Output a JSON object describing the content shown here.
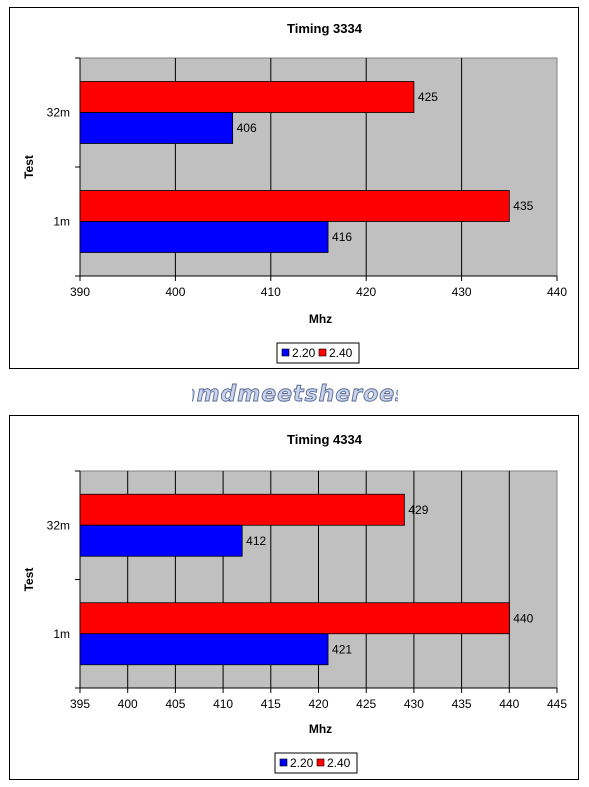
{
  "watermark": "amdmeetsheroes",
  "chart_data": [
    {
      "type": "bar",
      "orientation": "horizontal",
      "title": "Timing 3334",
      "xlabel": "Mhz",
      "ylabel": "Test",
      "categories": [
        "1m",
        "32m"
      ],
      "xlim": [
        390,
        440
      ],
      "xticks": [
        390,
        400,
        410,
        420,
        430,
        440
      ],
      "series": [
        {
          "name": "2.20",
          "color": "#0000ff",
          "values": [
            416,
            406
          ]
        },
        {
          "name": "2.40",
          "color": "#ff0000",
          "values": [
            435,
            425
          ]
        }
      ],
      "plot_background": "#c0c0c0",
      "grid": true,
      "legend_position": "bottom"
    },
    {
      "type": "bar",
      "orientation": "horizontal",
      "title": "Timing 4334",
      "xlabel": "Mhz",
      "ylabel": "Test",
      "categories": [
        "1m",
        "32m"
      ],
      "xlim": [
        395,
        445
      ],
      "xticks": [
        395,
        400,
        405,
        410,
        415,
        420,
        425,
        430,
        435,
        440,
        445
      ],
      "series": [
        {
          "name": "2.20",
          "color": "#0000ff",
          "values": [
            421,
            412
          ]
        },
        {
          "name": "2.40",
          "color": "#ff0000",
          "values": [
            440,
            429
          ]
        }
      ],
      "plot_background": "#c0c0c0",
      "grid": true,
      "legend_position": "bottom"
    }
  ]
}
